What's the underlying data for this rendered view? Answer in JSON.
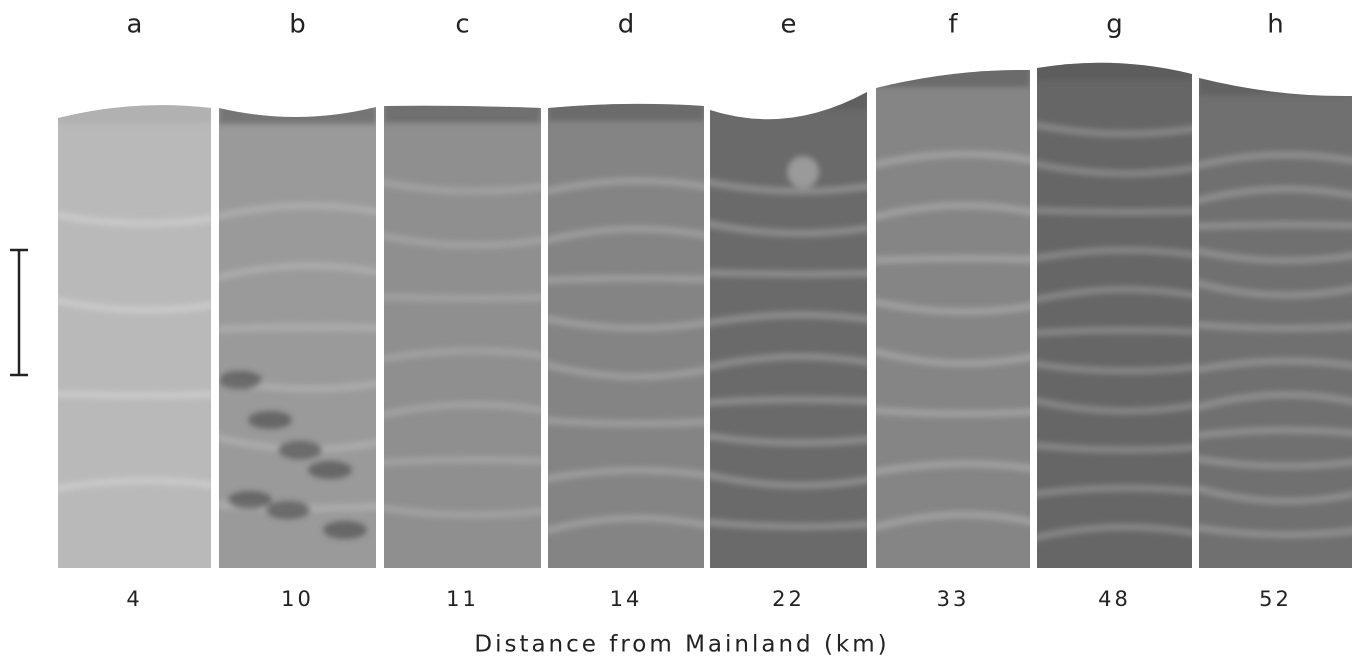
{
  "panels": [
    {
      "label": "a",
      "distance": 4
    },
    {
      "label": "b",
      "distance": 10
    },
    {
      "label": "c",
      "distance": 11
    },
    {
      "label": "d",
      "distance": 14
    },
    {
      "label": "e",
      "distance": 22
    },
    {
      "label": "f",
      "distance": 33
    },
    {
      "label": "g",
      "distance": 48
    },
    {
      "label": "h",
      "distance": 52
    }
  ],
  "x_axis_label": "Distance from Mainland (km)"
}
